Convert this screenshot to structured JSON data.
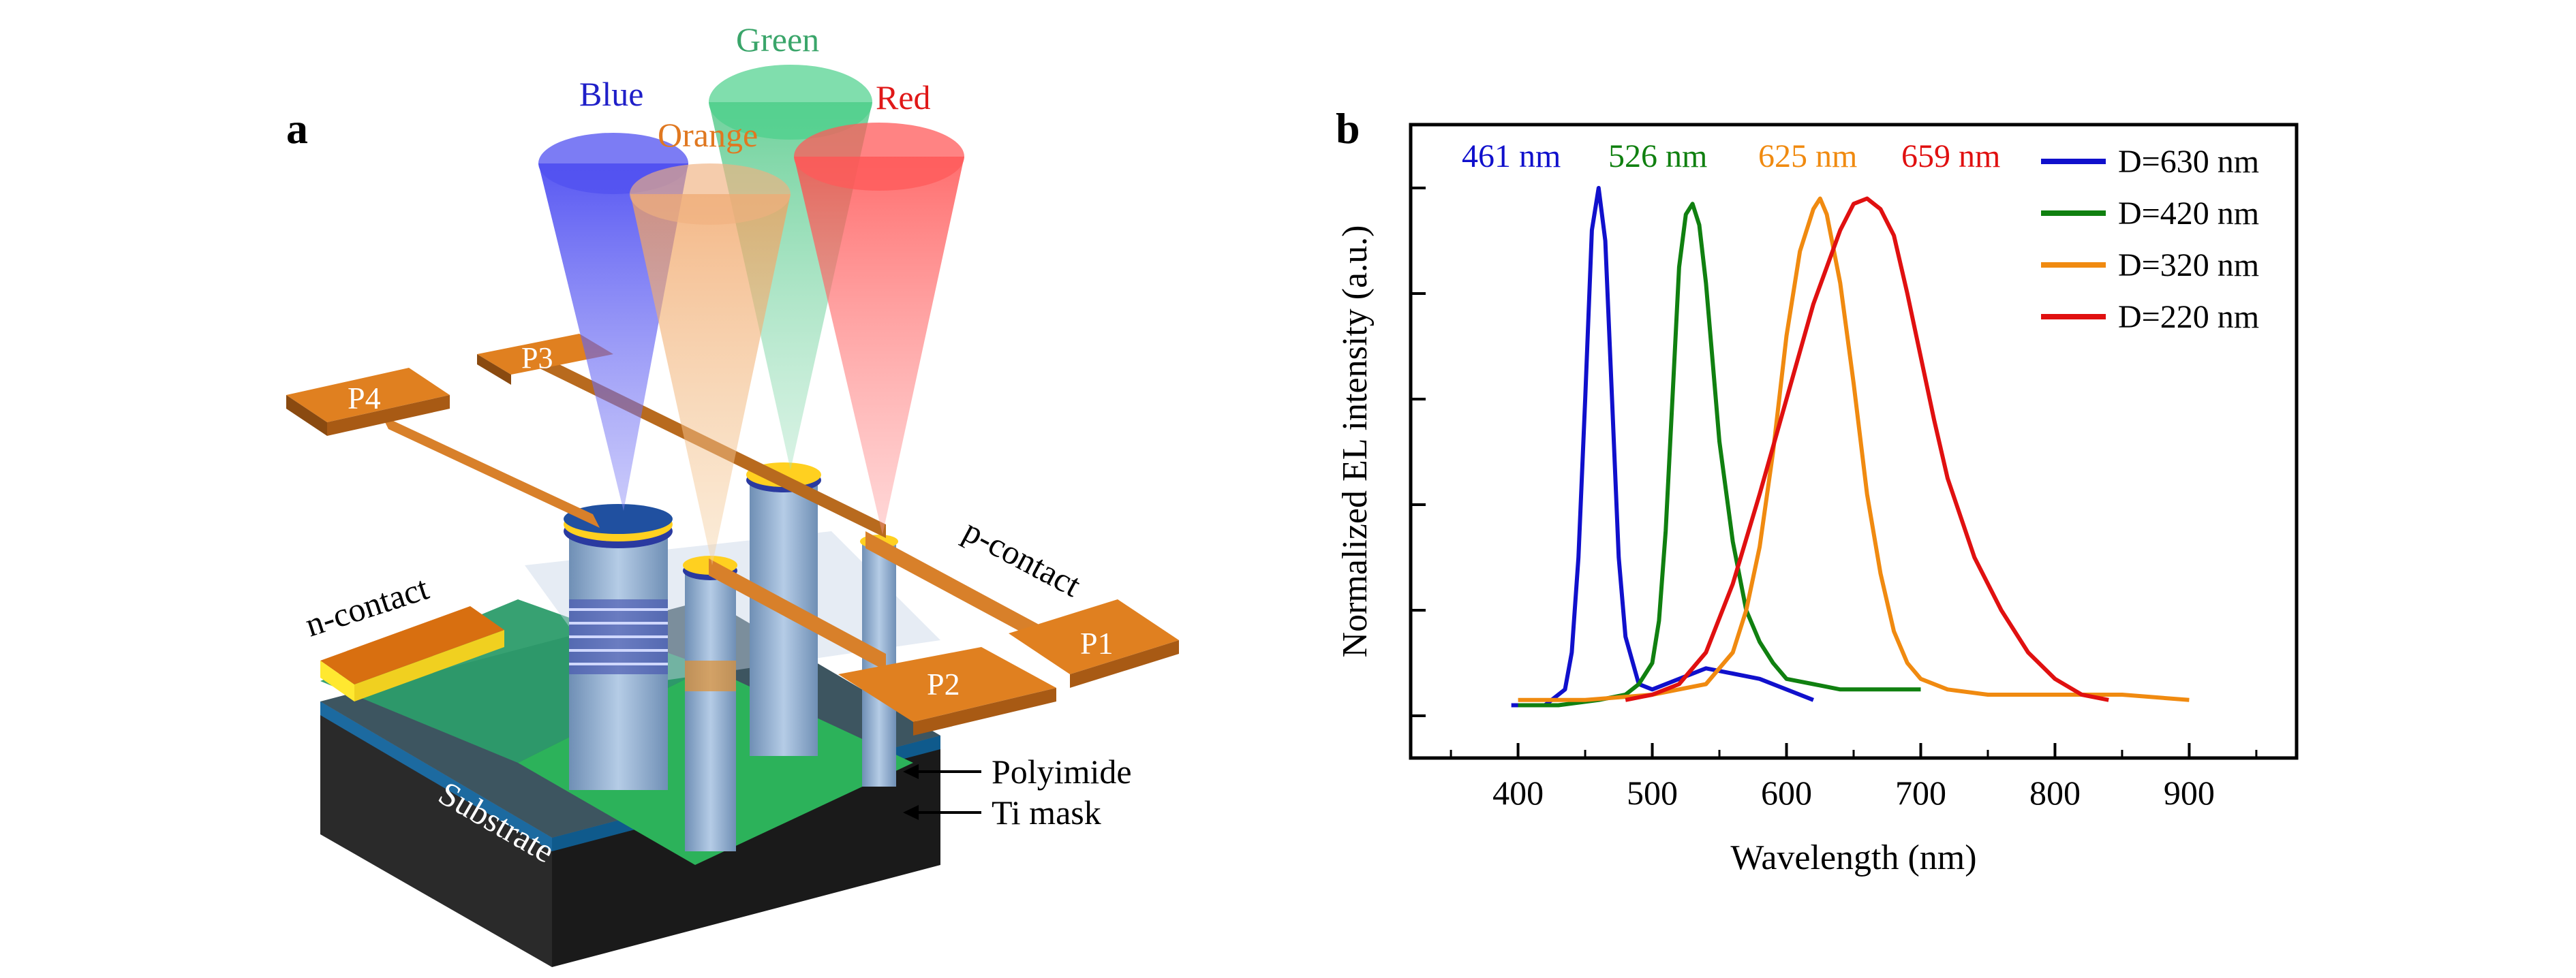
{
  "panel_a": {
    "label": "a",
    "beams": [
      {
        "text": "Blue",
        "color": "#1f1fc8"
      },
      {
        "text": "Green",
        "color": "#3aa56a"
      },
      {
        "text": "Orange",
        "color": "#e07820"
      },
      {
        "text": "Red",
        "color": "#e01818"
      }
    ],
    "pads": [
      "P1",
      "P2",
      "P3",
      "P4"
    ],
    "labels": {
      "p_contact": "p-contact",
      "n_contact": "n-contact",
      "polyimide": "Polyimide",
      "ti_mask": "Ti mask",
      "substrate": "Substrate"
    }
  },
  "panel_b": {
    "label": "b",
    "chart_data": {
      "type": "line",
      "title": "",
      "xlabel": "Wavelength (nm)",
      "ylabel": "Normalized EL intensity (a.u.)",
      "xlim": [
        320,
        980
      ],
      "ylim": [
        -0.08,
        1.12
      ],
      "xticks": [
        400,
        500,
        600,
        700,
        800,
        900
      ],
      "grid": false,
      "legend_position": "top-right",
      "peak_labels": [
        {
          "text": "461 nm",
          "color": "#1010cc"
        },
        {
          "text": "526 nm",
          "color": "#108010"
        },
        {
          "text": "625 nm",
          "color": "#f08a10"
        },
        {
          "text": "659 nm",
          "color": "#e01010"
        }
      ],
      "series": [
        {
          "name": "D=630 nm",
          "color": "#1010cc",
          "x": [
            395,
            420,
            435,
            440,
            445,
            450,
            455,
            460,
            465,
            470,
            475,
            480,
            490,
            500,
            520,
            540,
            560,
            580,
            600,
            620
          ],
          "y": [
            0.02,
            0.02,
            0.05,
            0.12,
            0.3,
            0.6,
            0.92,
            1.0,
            0.9,
            0.6,
            0.3,
            0.15,
            0.06,
            0.05,
            0.07,
            0.09,
            0.08,
            0.07,
            0.05,
            0.03
          ]
        },
        {
          "name": "D=420 nm",
          "color": "#108010",
          "x": [
            400,
            430,
            460,
            480,
            490,
            500,
            505,
            510,
            515,
            520,
            525,
            530,
            535,
            540,
            545,
            550,
            560,
            570,
            580,
            590,
            600,
            620,
            640,
            660,
            680,
            700
          ],
          "y": [
            0.02,
            0.02,
            0.03,
            0.04,
            0.06,
            0.1,
            0.18,
            0.35,
            0.6,
            0.85,
            0.95,
            0.97,
            0.93,
            0.82,
            0.67,
            0.52,
            0.33,
            0.2,
            0.14,
            0.1,
            0.07,
            0.06,
            0.05,
            0.05,
            0.05,
            0.05
          ]
        },
        {
          "name": "D=320 nm",
          "color": "#f08a10",
          "x": [
            400,
            450,
            500,
            540,
            560,
            570,
            580,
            590,
            600,
            610,
            620,
            625,
            630,
            640,
            650,
            660,
            670,
            680,
            690,
            700,
            720,
            750,
            800,
            850,
            900
          ],
          "y": [
            0.03,
            0.03,
            0.04,
            0.06,
            0.12,
            0.2,
            0.32,
            0.5,
            0.72,
            0.88,
            0.96,
            0.98,
            0.95,
            0.82,
            0.63,
            0.42,
            0.27,
            0.16,
            0.1,
            0.07,
            0.05,
            0.04,
            0.04,
            0.04,
            0.03
          ]
        },
        {
          "name": "D=220 nm",
          "color": "#e01010",
          "x": [
            480,
            500,
            520,
            540,
            560,
            580,
            600,
            620,
            640,
            650,
            660,
            670,
            680,
            690,
            700,
            710,
            720,
            740,
            760,
            780,
            800,
            820,
            840
          ],
          "y": [
            0.03,
            0.04,
            0.06,
            0.12,
            0.25,
            0.42,
            0.6,
            0.78,
            0.92,
            0.97,
            0.98,
            0.96,
            0.91,
            0.8,
            0.68,
            0.56,
            0.45,
            0.3,
            0.2,
            0.12,
            0.07,
            0.04,
            0.03
          ]
        }
      ]
    }
  }
}
